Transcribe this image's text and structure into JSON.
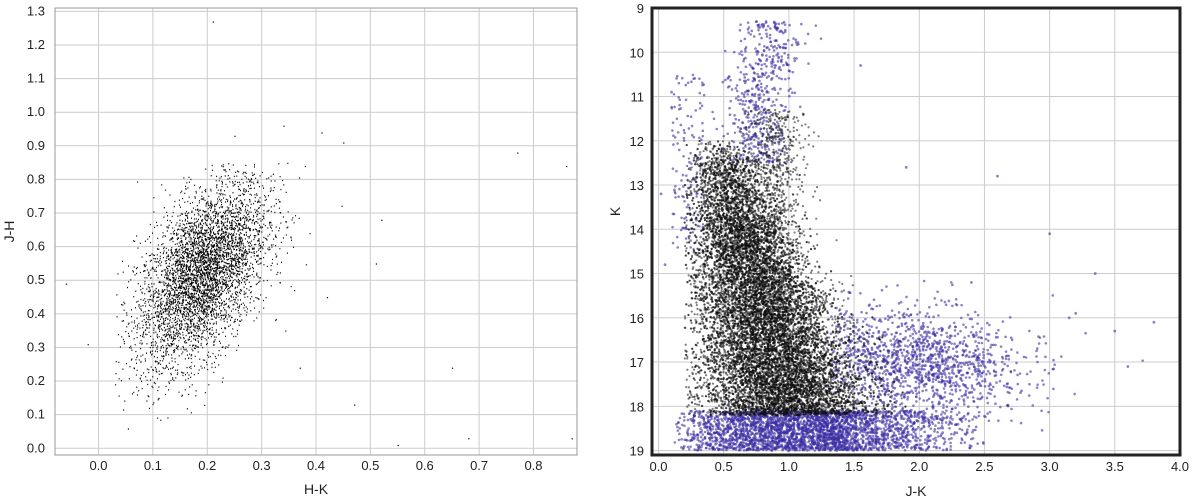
{
  "chart_data": [
    {
      "type": "scatter",
      "xlabel": "H-K",
      "ylabel": "J-H",
      "xlim": [
        -0.08,
        0.88
      ],
      "ylim": [
        -0.02,
        1.31
      ],
      "xticks": [
        "0.0",
        "0.1",
        "0.2",
        "0.3",
        "0.4",
        "0.5",
        "0.6",
        "0.7",
        "0.8"
      ],
      "yticks": [
        "0.0",
        "0.1",
        "0.2",
        "0.3",
        "0.4",
        "0.5",
        "0.6",
        "0.7",
        "0.8",
        "0.9",
        "1.0",
        "1.1",
        "1.2",
        "1.3"
      ],
      "grid": true,
      "marker_color": "#000000",
      "main_cloud": {
        "x_center": 0.19,
        "y_center": 0.52,
        "x_spread": 0.06,
        "y_spread": 0.13,
        "approx_count": 4500
      },
      "outliers": {
        "x": [
          0.21,
          0.25,
          0.34,
          0.41,
          0.45,
          0.77,
          0.86,
          0.55,
          0.68,
          0.87,
          -0.06,
          -0.02,
          0.65,
          0.47,
          0.37,
          0.42,
          0.52,
          0.51
        ],
        "y": [
          1.27,
          0.93,
          0.96,
          0.94,
          0.91,
          0.88,
          0.84,
          0.01,
          0.03,
          0.03,
          0.49,
          0.31,
          0.24,
          0.13,
          0.24,
          0.45,
          0.68,
          0.55
        ]
      }
    },
    {
      "type": "scatter",
      "xlabel": "J-K",
      "ylabel": "K",
      "xlim": [
        -0.05,
        4.0
      ],
      "ylim": [
        19.1,
        9.0
      ],
      "y_inverted": true,
      "xticks": [
        "0.0",
        "0.5",
        "1.0",
        "1.5",
        "2.0",
        "2.5",
        "3.0",
        "3.5",
        "4.0"
      ],
      "yticks": [
        "9",
        "10",
        "11",
        "12",
        "13",
        "14",
        "15",
        "16",
        "17",
        "18",
        "19"
      ],
      "grid": true,
      "series": [
        {
          "color": "#111111",
          "features": {
            "main_branch": {
              "K_range": [
                12.0,
                18.2
              ],
              "JK_at_bright": 0.45,
              "JK_at_faint": 1.2
            },
            "limit_K": 18.2,
            "approx_count": 14000
          }
        },
        {
          "color": "#3a2fa3",
          "features": {
            "red_giant_plume": {
              "x_center": 0.85,
              "K_range": [
                9.3,
                12.0
              ]
            },
            "faint_band_K": [
              18.0,
              19.0
            ],
            "red_tail": {
              "x_center": 2.0,
              "y_center": 17.0,
              "x_spread": 0.4,
              "y_spread": 0.6
            },
            "approx_count": 3000
          },
          "outliers": {
            "x": [
              3.8,
              3.5,
              3.0,
              2.6,
              2.4,
              3.2,
              3.6,
              1.55,
              0.1,
              0.05,
              0.02,
              1.9,
              3.15,
              3.35
            ],
            "y": [
              16.1,
              16.3,
              14.1,
              12.8,
              15.2,
              15.9,
              17.1,
              10.3,
              10.9,
              14.8,
              13.2,
              12.6,
              16.0,
              15.0
            ]
          }
        }
      ]
    }
  ]
}
